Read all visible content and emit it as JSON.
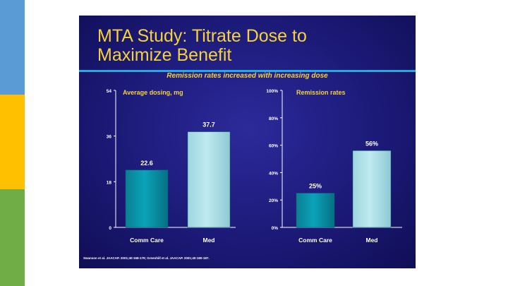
{
  "background_stripes": [
    "#5b9bd5",
    "#ffc000",
    "#70ad47"
  ],
  "slide": {
    "title_line1": "MTA Study: Titrate Dose to",
    "title_line2": "Maximize Benefit",
    "subtitle": "Remission rates increased with increasing dose",
    "footnote": "Swanson et al. JAACAP. 2001;40:168-179; Greenhill et al. JAACAP. 2001;40:180-187."
  },
  "chart_data": [
    {
      "type": "bar",
      "title": "Average dosing, mg",
      "categories": [
        "Comm Care",
        "Med"
      ],
      "values": [
        22.6,
        37.7
      ],
      "value_labels": [
        "22.6",
        "37.7"
      ],
      "ylim": [
        0,
        54
      ],
      "yticks": [
        0,
        18,
        36,
        54
      ],
      "ytick_labels": [
        "0",
        "18",
        "36",
        "54"
      ],
      "bar_colors": [
        "#0aa3b8",
        "#bfeaf0"
      ],
      "grid": false
    },
    {
      "type": "bar",
      "title": "Remission rates",
      "categories": [
        "Comm Care",
        "Med"
      ],
      "values": [
        25,
        56
      ],
      "value_labels": [
        "25%",
        "56%"
      ],
      "ylim": [
        0,
        100
      ],
      "yticks": [
        0,
        20,
        40,
        60,
        80,
        100
      ],
      "ytick_labels": [
        "0%",
        "20%",
        "40%",
        "60%",
        "80%",
        "100%"
      ],
      "bar_colors": [
        "#0aa3b8",
        "#bfeaf0"
      ],
      "grid": false
    }
  ]
}
